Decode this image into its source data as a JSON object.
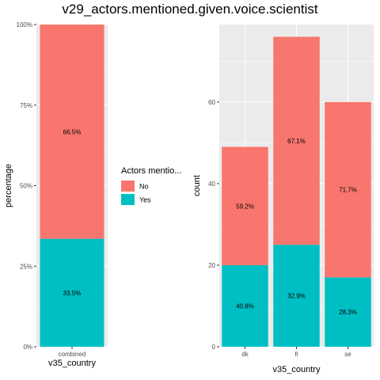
{
  "chart_data": {
    "title": "v29_actors.mentioned.given.voice.scientist",
    "legend": {
      "title": "Actors mentio...",
      "placement": "center-left-between-panels",
      "entries": [
        {
          "label": "No",
          "color": "#F8766D"
        },
        {
          "label": "Yes",
          "color": "#00BFC4"
        }
      ]
    },
    "panels": [
      {
        "type": "bar",
        "stacked": true,
        "xlabel": "v35_country",
        "ylabel": "percentage",
        "ylim": [
          0,
          1
        ],
        "yticks": [
          0,
          0.25,
          0.5,
          0.75,
          1.0
        ],
        "ytick_labels": [
          "0%",
          "25%",
          "50%",
          "75%",
          "100%"
        ],
        "categories": [
          "combined"
        ],
        "series": [
          {
            "name": "Yes",
            "color": "#00BFC4",
            "values": [
              0.335
            ],
            "labels": [
              "33.5%"
            ]
          },
          {
            "name": "No",
            "color": "#F8766D",
            "values": [
              0.665
            ],
            "labels": [
              "66.5%"
            ]
          }
        ],
        "grid": true
      },
      {
        "type": "bar",
        "stacked": true,
        "xlabel": "v35_country",
        "ylabel": "count",
        "ylim": [
          0,
          79
        ],
        "yticks": [
          0,
          20,
          40,
          60
        ],
        "ytick_labels": [
          "0",
          "20",
          "40",
          "60"
        ],
        "categories": [
          "dk",
          "fi",
          "se"
        ],
        "series": [
          {
            "name": "Yes",
            "color": "#00BFC4",
            "values": [
              20,
              25,
              17
            ],
            "labels": [
              "40.8%",
              "32.9%",
              "28.3%"
            ]
          },
          {
            "name": "No",
            "color": "#F8766D",
            "values": [
              29,
              51,
              43
            ],
            "labels": [
              "59.2%",
              "67.1%",
              "71.7%"
            ]
          }
        ],
        "grid": true
      }
    ]
  }
}
